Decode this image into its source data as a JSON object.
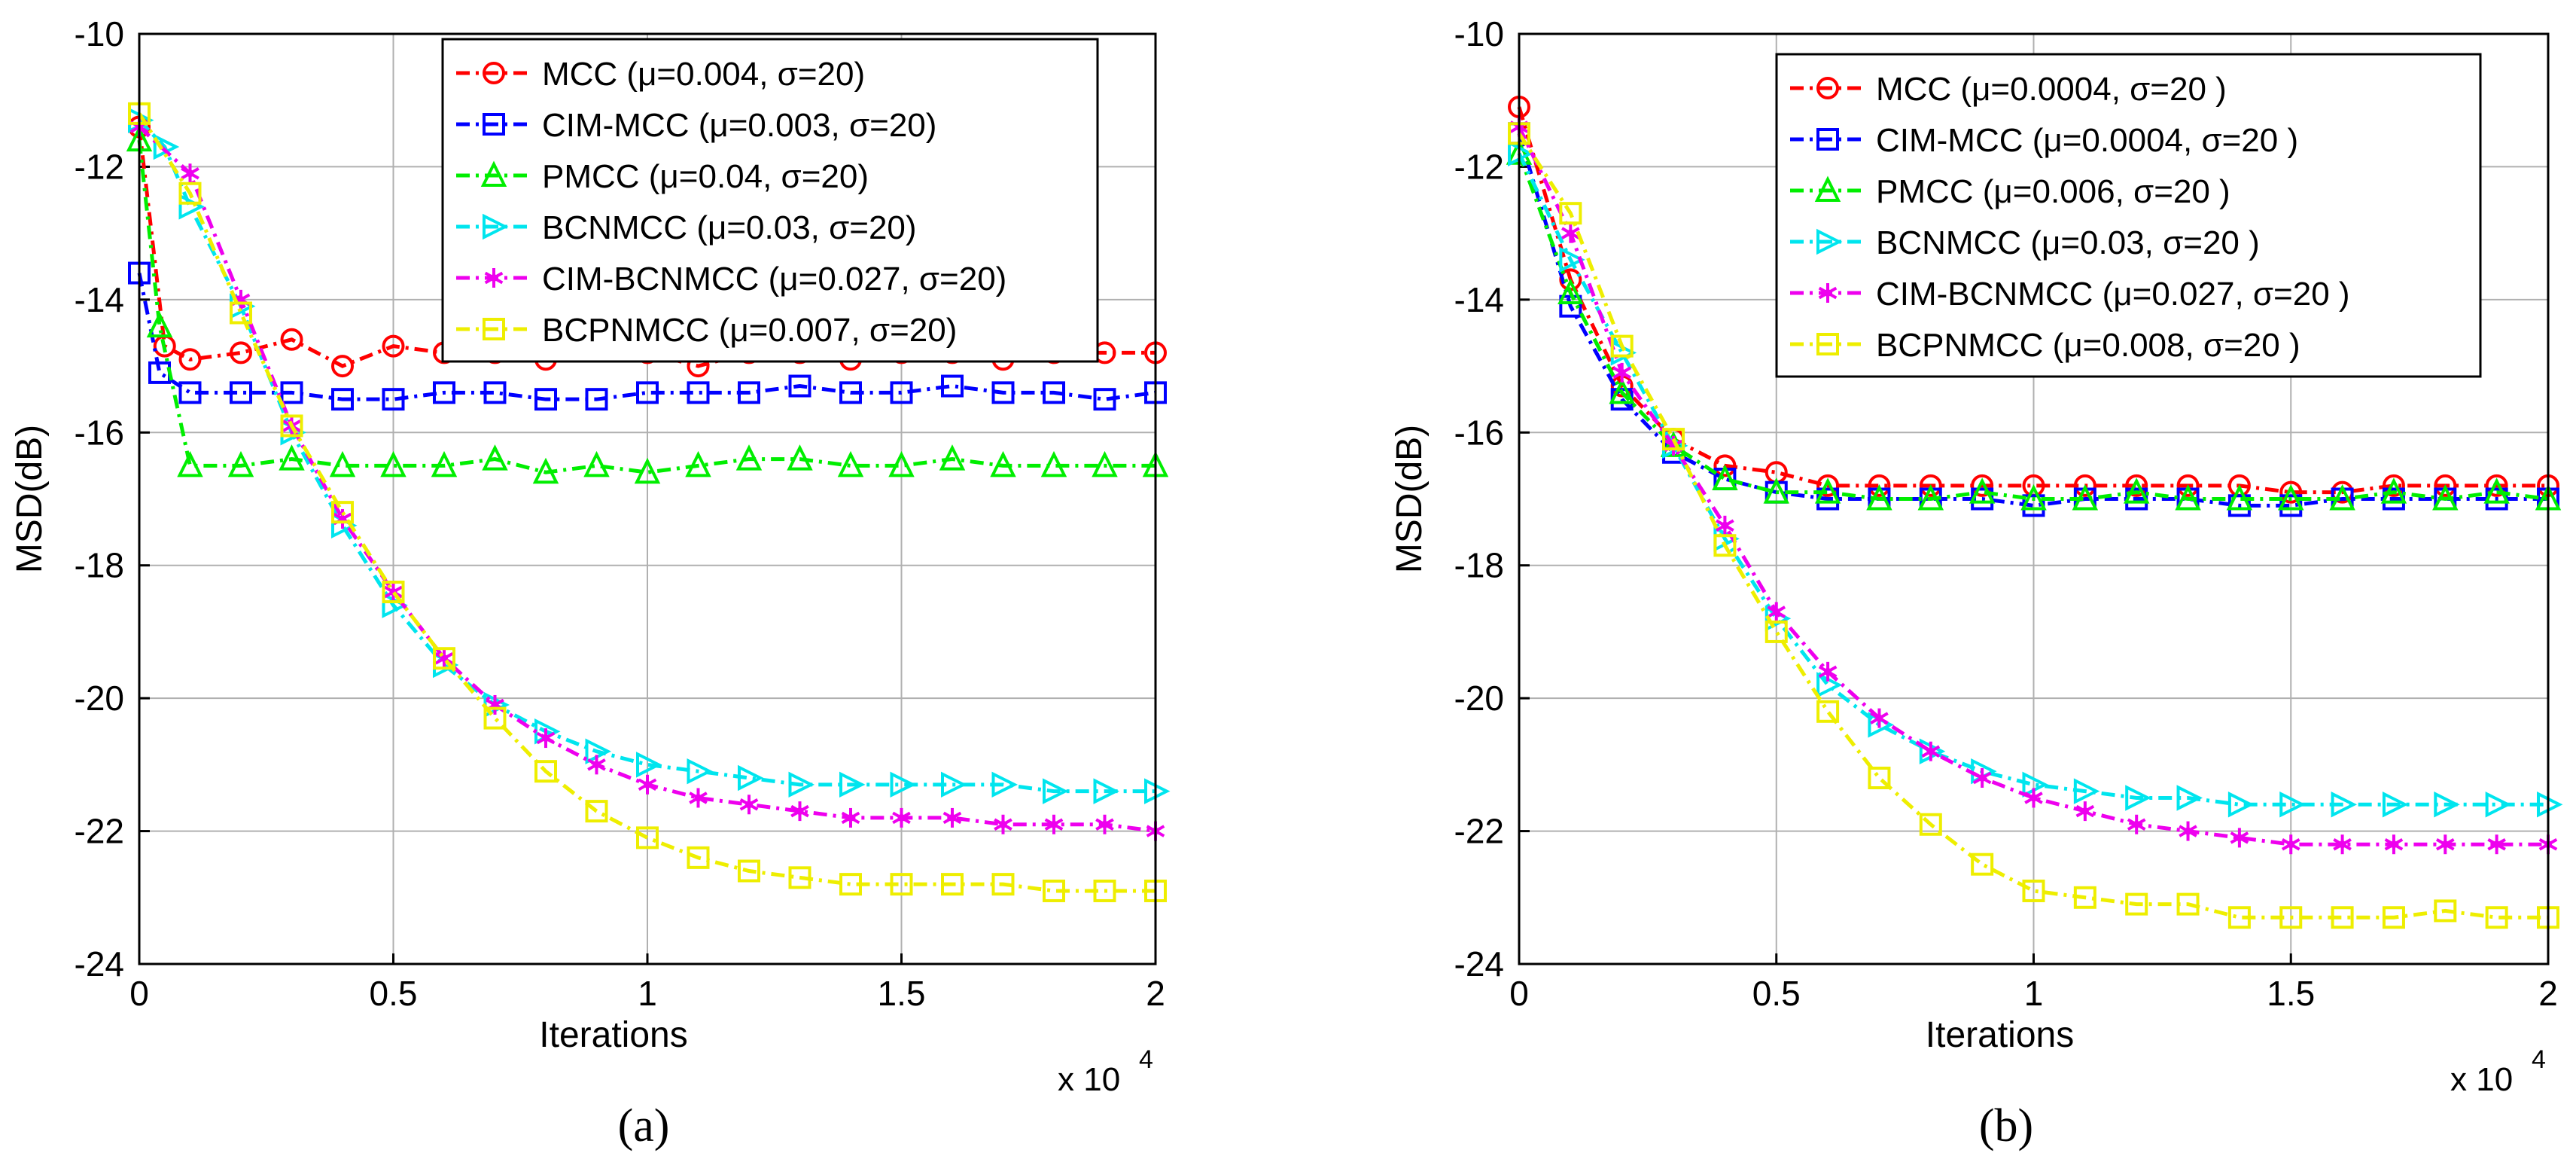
{
  "chart_data": [
    {
      "type": "line",
      "panel_label": "(a)",
      "xlabel": "Iterations",
      "ylabel": "MSD(dB)",
      "x_multiplier": "x 10",
      "x_multiplier_exp": "4",
      "xlim": [
        0,
        2
      ],
      "ylim": [
        -24,
        -10
      ],
      "xticks": [
        "0",
        "0.5",
        "1",
        "1.5",
        "2"
      ],
      "yticks": [
        "-10",
        "-12",
        "-14",
        "-16",
        "-18",
        "-20",
        "-22",
        "-24"
      ],
      "grid": true,
      "legend_position": "top-right",
      "series": [
        {
          "name": "MCC",
          "params": " (μ=0.004, σ=20)",
          "color": "#ff0000",
          "marker": "circle",
          "x": [
            0,
            0.05,
            0.1,
            0.2,
            0.3,
            0.4,
            0.5,
            0.6,
            0.7,
            0.8,
            0.9,
            1.0,
            1.1,
            1.2,
            1.3,
            1.4,
            1.5,
            1.6,
            1.7,
            1.8,
            1.9,
            2.0
          ],
          "y": [
            -11.4,
            -14.7,
            -14.9,
            -14.8,
            -14.6,
            -15.0,
            -14.7,
            -14.8,
            -14.8,
            -14.9,
            -14.7,
            -14.8,
            -15.0,
            -14.8,
            -14.8,
            -14.9,
            -14.8,
            -14.8,
            -14.9,
            -14.8,
            -14.8,
            -14.8
          ]
        },
        {
          "name": "CIM-MCC",
          "params": " (μ=0.003, σ=20)",
          "color": "#0000ff",
          "marker": "square",
          "x": [
            0,
            0.04,
            0.1,
            0.2,
            0.3,
            0.4,
            0.5,
            0.6,
            0.7,
            0.8,
            0.9,
            1.0,
            1.1,
            1.2,
            1.3,
            1.4,
            1.5,
            1.6,
            1.7,
            1.8,
            1.9,
            2.0
          ],
          "y": [
            -13.6,
            -15.1,
            -15.4,
            -15.4,
            -15.4,
            -15.5,
            -15.5,
            -15.4,
            -15.4,
            -15.5,
            -15.5,
            -15.4,
            -15.4,
            -15.4,
            -15.3,
            -15.4,
            -15.4,
            -15.3,
            -15.4,
            -15.4,
            -15.5,
            -15.4
          ]
        },
        {
          "name": "PMCC",
          "params": " (μ=0.04, σ=20)",
          "color": "#00ee00",
          "marker": "triangle-up",
          "x": [
            0,
            0.04,
            0.1,
            0.2,
            0.3,
            0.4,
            0.5,
            0.6,
            0.7,
            0.8,
            0.9,
            1.0,
            1.1,
            1.2,
            1.3,
            1.4,
            1.5,
            1.6,
            1.7,
            1.8,
            1.9,
            2.0
          ],
          "y": [
            -11.6,
            -14.4,
            -16.5,
            -16.5,
            -16.4,
            -16.5,
            -16.5,
            -16.5,
            -16.4,
            -16.6,
            -16.5,
            -16.6,
            -16.5,
            -16.4,
            -16.4,
            -16.5,
            -16.5,
            -16.4,
            -16.5,
            -16.5,
            -16.5,
            -16.5
          ]
        },
        {
          "name": "BCNMCC",
          "params": " (μ=0.03, σ=20)",
          "color": "#00e5ee",
          "marker": "triangle-right",
          "x": [
            0,
            0.05,
            0.1,
            0.2,
            0.3,
            0.4,
            0.5,
            0.6,
            0.7,
            0.8,
            0.9,
            1.0,
            1.1,
            1.2,
            1.3,
            1.4,
            1.5,
            1.6,
            1.7,
            1.8,
            1.9,
            2.0
          ],
          "y": [
            -11.3,
            -11.7,
            -12.6,
            -14.1,
            -16.0,
            -17.4,
            -18.6,
            -19.5,
            -20.1,
            -20.5,
            -20.8,
            -21.0,
            -21.1,
            -21.2,
            -21.3,
            -21.3,
            -21.3,
            -21.3,
            -21.3,
            -21.4,
            -21.4,
            -21.4
          ]
        },
        {
          "name": "CIM-BCNMCC",
          "params": " (μ=0.027, σ=20)",
          "color": "#ee00ee",
          "marker": "asterisk",
          "x": [
            0,
            0.1,
            0.2,
            0.3,
            0.4,
            0.5,
            0.6,
            0.7,
            0.8,
            0.9,
            1.0,
            1.1,
            1.2,
            1.3,
            1.4,
            1.5,
            1.6,
            1.7,
            1.8,
            1.9,
            2.0
          ],
          "y": [
            -11.4,
            -12.1,
            -14.0,
            -15.9,
            -17.3,
            -18.4,
            -19.4,
            -20.1,
            -20.6,
            -21.0,
            -21.3,
            -21.5,
            -21.6,
            -21.7,
            -21.8,
            -21.8,
            -21.8,
            -21.9,
            -21.9,
            -21.9,
            -22.0
          ]
        },
        {
          "name": "BCPNMCC",
          "params": " (μ=0.007, σ=20)",
          "color": "#eeee00",
          "marker": "square",
          "x": [
            0,
            0.1,
            0.2,
            0.3,
            0.4,
            0.5,
            0.6,
            0.7,
            0.8,
            0.9,
            1.0,
            1.1,
            1.2,
            1.3,
            1.4,
            1.5,
            1.6,
            1.7,
            1.8,
            1.9,
            2.0
          ],
          "y": [
            -11.2,
            -12.4,
            -14.2,
            -15.9,
            -17.2,
            -18.4,
            -19.4,
            -20.3,
            -21.1,
            -21.7,
            -22.1,
            -22.4,
            -22.6,
            -22.7,
            -22.8,
            -22.8,
            -22.8,
            -22.8,
            -22.9,
            -22.9,
            -22.9
          ]
        }
      ]
    },
    {
      "type": "line",
      "panel_label": "(b)",
      "xlabel": "Iterations",
      "ylabel": "MSD(dB)",
      "x_multiplier": "x 10",
      "x_multiplier_exp": "4",
      "xlim": [
        0,
        2
      ],
      "ylim": [
        -24,
        -10
      ],
      "xticks": [
        "0",
        "0.5",
        "1",
        "1.5",
        "2"
      ],
      "yticks": [
        "-10",
        "-12",
        "-14",
        "-16",
        "-18",
        "-20",
        "-22",
        "-24"
      ],
      "grid": true,
      "legend_position": "top-right",
      "series": [
        {
          "name": "MCC",
          "params": " (μ=0.0004, σ=20 )",
          "color": "#ff0000",
          "marker": "circle",
          "x": [
            0,
            0.1,
            0.2,
            0.3,
            0.4,
            0.5,
            0.6,
            0.7,
            0.8,
            0.9,
            1.0,
            1.1,
            1.2,
            1.3,
            1.4,
            1.5,
            1.6,
            1.7,
            1.8,
            1.9,
            2.0
          ],
          "y": [
            -11.1,
            -13.7,
            -15.3,
            -16.1,
            -16.5,
            -16.6,
            -16.8,
            -16.8,
            -16.8,
            -16.8,
            -16.8,
            -16.8,
            -16.8,
            -16.8,
            -16.8,
            -16.9,
            -16.9,
            -16.8,
            -16.8,
            -16.8,
            -16.8
          ]
        },
        {
          "name": "CIM-MCC",
          "params": " (μ=0.0004, σ=20 )",
          "color": "#0000ff",
          "marker": "square",
          "x": [
            0,
            0.1,
            0.2,
            0.3,
            0.4,
            0.5,
            0.6,
            0.7,
            0.8,
            0.9,
            1.0,
            1.1,
            1.2,
            1.3,
            1.4,
            1.5,
            1.6,
            1.7,
            1.8,
            1.9,
            2.0
          ],
          "y": [
            -11.5,
            -14.1,
            -15.5,
            -16.3,
            -16.7,
            -16.9,
            -17.0,
            -17.0,
            -17.0,
            -17.0,
            -17.1,
            -17.0,
            -17.0,
            -17.0,
            -17.1,
            -17.1,
            -17.0,
            -17.0,
            -17.0,
            -17.0,
            -17.0
          ]
        },
        {
          "name": "PMCC",
          "params": " (μ=0.006, σ=20 )",
          "color": "#00ee00",
          "marker": "triangle-up",
          "x": [
            0,
            0.1,
            0.2,
            0.3,
            0.4,
            0.5,
            0.6,
            0.7,
            0.8,
            0.9,
            1.0,
            1.1,
            1.2,
            1.3,
            1.4,
            1.5,
            1.6,
            1.7,
            1.8,
            1.9,
            2.0
          ],
          "y": [
            -11.8,
            -13.9,
            -15.4,
            -16.2,
            -16.7,
            -16.9,
            -16.9,
            -17.0,
            -17.0,
            -16.9,
            -17.0,
            -17.0,
            -16.9,
            -17.0,
            -17.0,
            -17.0,
            -17.0,
            -16.9,
            -17.0,
            -16.9,
            -17.0
          ]
        },
        {
          "name": "BCNMCC",
          "params": " (μ=0.03, σ=20 )",
          "color": "#00e5ee",
          "marker": "triangle-right",
          "x": [
            0,
            0.1,
            0.2,
            0.3,
            0.4,
            0.5,
            0.6,
            0.7,
            0.8,
            0.9,
            1.0,
            1.1,
            1.2,
            1.3,
            1.4,
            1.5,
            1.6,
            1.7,
            1.8,
            1.9,
            2.0
          ],
          "y": [
            -11.8,
            -13.4,
            -14.8,
            -16.2,
            -17.6,
            -18.8,
            -19.8,
            -20.4,
            -20.8,
            -21.1,
            -21.3,
            -21.4,
            -21.5,
            -21.5,
            -21.6,
            -21.6,
            -21.6,
            -21.6,
            -21.6,
            -21.6,
            -21.6
          ]
        },
        {
          "name": "CIM-BCNMCC",
          "params": " (μ=0.027, σ=20 )",
          "color": "#ee00ee",
          "marker": "asterisk",
          "x": [
            0,
            0.1,
            0.2,
            0.3,
            0.4,
            0.5,
            0.6,
            0.7,
            0.8,
            0.9,
            1.0,
            1.1,
            1.2,
            1.3,
            1.4,
            1.5,
            1.6,
            1.7,
            1.8,
            1.9,
            2.0
          ],
          "y": [
            -11.4,
            -13.0,
            -15.1,
            -16.2,
            -17.4,
            -18.7,
            -19.6,
            -20.3,
            -20.8,
            -21.2,
            -21.5,
            -21.7,
            -21.9,
            -22.0,
            -22.1,
            -22.2,
            -22.2,
            -22.2,
            -22.2,
            -22.2,
            -22.2
          ]
        },
        {
          "name": "BCPNMCC",
          "params": " (μ=0.008, σ=20 )",
          "color": "#eeee00",
          "marker": "square",
          "x": [
            0,
            0.1,
            0.2,
            0.3,
            0.4,
            0.5,
            0.6,
            0.7,
            0.8,
            0.9,
            1.0,
            1.1,
            1.2,
            1.3,
            1.4,
            1.5,
            1.6,
            1.7,
            1.8,
            1.9,
            2.0
          ],
          "y": [
            -11.5,
            -12.7,
            -14.7,
            -16.1,
            -17.7,
            -19.0,
            -20.2,
            -21.2,
            -21.9,
            -22.5,
            -22.9,
            -23.0,
            -23.1,
            -23.1,
            -23.3,
            -23.3,
            -23.3,
            -23.3,
            -23.2,
            -23.3,
            -23.3
          ]
        }
      ]
    }
  ]
}
